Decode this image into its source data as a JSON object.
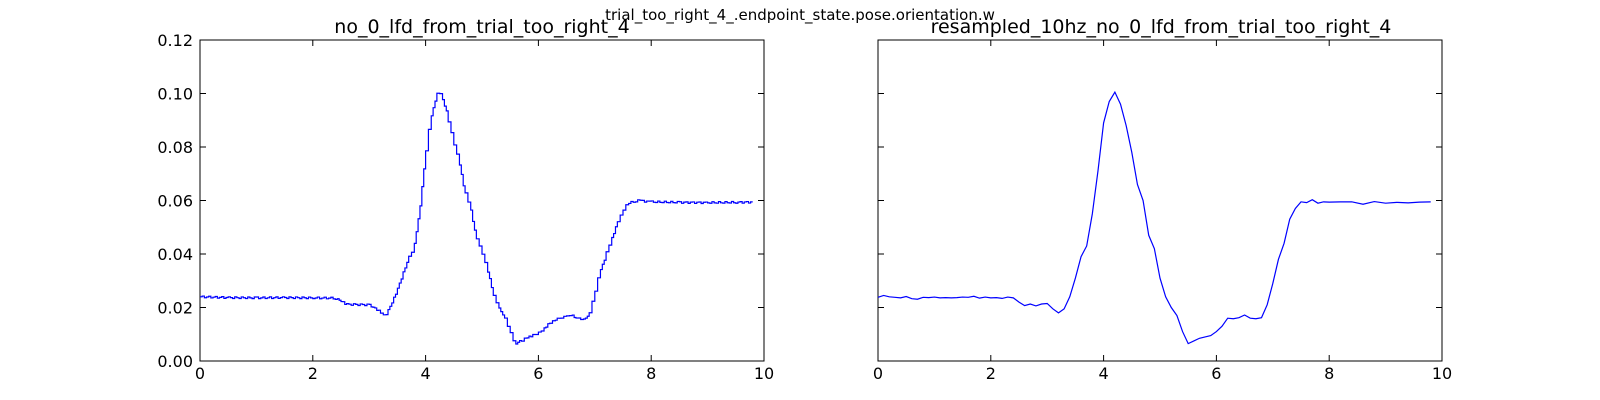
{
  "figure": {
    "suptitle": "trial_too_right_4_.endpoint_state.pose.orientation.w"
  },
  "chart_data": [
    {
      "type": "line",
      "title": "no_0_lfd_from_trial_too_right_4",
      "xlabel": "",
      "ylabel": "",
      "xlim": [
        0,
        10
      ],
      "ylim": [
        0,
        0.12
      ],
      "x_ticks": [
        0,
        2,
        4,
        6,
        8,
        10
      ],
      "y_ticks": [
        0.0,
        0.02,
        0.04,
        0.06,
        0.08,
        0.1,
        0.12
      ],
      "x_tick_labels": [
        "0",
        "2",
        "4",
        "6",
        "8",
        "10"
      ],
      "y_tick_labels": [
        "0.00",
        "0.02",
        "0.04",
        "0.06",
        "0.08",
        "0.10",
        "0.12"
      ],
      "grid": false,
      "line_color": "#0000ff",
      "step_style": true,
      "series": [
        {
          "x": [
            0,
            0.5,
            1.0,
            1.5,
            2.0,
            2.4,
            2.5,
            2.6,
            3.0,
            3.1,
            3.2,
            3.3,
            3.4,
            3.5,
            3.6,
            3.7,
            3.8,
            3.9,
            4.0,
            4.1,
            4.2,
            4.25,
            4.3,
            4.4,
            4.5,
            4.6,
            4.7,
            4.8,
            4.9,
            5.0,
            5.1,
            5.2,
            5.3,
            5.4,
            5.5,
            5.6,
            5.7,
            5.8,
            5.9,
            6.0,
            6.1,
            6.2,
            6.3,
            6.4,
            6.5,
            6.6,
            6.7,
            6.8,
            6.9,
            7.0,
            7.1,
            7.2,
            7.3,
            7.4,
            7.5,
            7.6,
            7.8,
            8.0,
            8.5,
            9.0,
            9.5,
            9.8
          ],
          "y": [
            0.024,
            0.0237,
            0.0236,
            0.0237,
            0.0236,
            0.0235,
            0.0225,
            0.0212,
            0.021,
            0.02,
            0.0185,
            0.017,
            0.021,
            0.026,
            0.032,
            0.038,
            0.042,
            0.055,
            0.075,
            0.09,
            0.099,
            0.1005,
            0.099,
            0.092,
            0.083,
            0.075,
            0.064,
            0.058,
            0.047,
            0.042,
            0.035,
            0.026,
            0.02,
            0.017,
            0.012,
            0.0065,
            0.0075,
            0.0085,
            0.0095,
            0.01,
            0.012,
            0.014,
            0.0155,
            0.016,
            0.0165,
            0.017,
            0.016,
            0.0158,
            0.0165,
            0.024,
            0.033,
            0.039,
            0.045,
            0.051,
            0.056,
            0.059,
            0.06,
            0.0595,
            0.0593,
            0.0592,
            0.0593,
            0.0594
          ]
        }
      ]
    },
    {
      "type": "line",
      "title": "resampled_10hz_no_0_lfd_from_trial_too_right_4",
      "xlabel": "",
      "ylabel": "",
      "xlim": [
        0,
        10
      ],
      "ylim": [
        0,
        0.12
      ],
      "x_ticks": [
        0,
        2,
        4,
        6,
        8,
        10
      ],
      "y_ticks": [
        0.0,
        0.02,
        0.04,
        0.06,
        0.08,
        0.1,
        0.12
      ],
      "x_tick_labels": [
        "0",
        "2",
        "4",
        "6",
        "8",
        "10"
      ],
      "y_tick_labels": [],
      "grid": false,
      "line_color": "#0000ff",
      "step_style": false,
      "series": [
        {
          "x": [
            0,
            0.1,
            0.2,
            0.3,
            0.4,
            0.5,
            0.6,
            0.7,
            0.8,
            0.9,
            1.0,
            1.1,
            1.2,
            1.3,
            1.4,
            1.5,
            1.6,
            1.7,
            1.8,
            1.9,
            2.0,
            2.1,
            2.2,
            2.3,
            2.4,
            2.5,
            2.6,
            2.7,
            2.8,
            2.9,
            3.0,
            3.1,
            3.2,
            3.3,
            3.4,
            3.5,
            3.6,
            3.7,
            3.8,
            3.9,
            4.0,
            4.1,
            4.2,
            4.3,
            4.4,
            4.5,
            4.6,
            4.7,
            4.8,
            4.9,
            5.0,
            5.1,
            5.2,
            5.3,
            5.4,
            5.5,
            5.6,
            5.7,
            5.8,
            5.9,
            6.0,
            6.1,
            6.2,
            6.3,
            6.4,
            6.5,
            6.6,
            6.7,
            6.8,
            6.9,
            7.0,
            7.1,
            7.2,
            7.3,
            7.4,
            7.5,
            7.6,
            7.7,
            7.8,
            7.9,
            8.0,
            8.2,
            8.4,
            8.6,
            8.8,
            9.0,
            9.2,
            9.4,
            9.6,
            9.8
          ],
          "y": [
            0.0238,
            0.0245,
            0.024,
            0.0238,
            0.0236,
            0.0241,
            0.0233,
            0.0231,
            0.0238,
            0.0237,
            0.0239,
            0.0236,
            0.0237,
            0.0236,
            0.0237,
            0.0239,
            0.0238,
            0.0242,
            0.0235,
            0.0239,
            0.0236,
            0.0237,
            0.0234,
            0.0239,
            0.0236,
            0.022,
            0.0207,
            0.0213,
            0.0206,
            0.0213,
            0.0215,
            0.0195,
            0.018,
            0.0195,
            0.024,
            0.031,
            0.039,
            0.043,
            0.055,
            0.071,
            0.089,
            0.097,
            0.1005,
            0.096,
            0.088,
            0.078,
            0.066,
            0.06,
            0.047,
            0.042,
            0.031,
            0.024,
            0.02,
            0.017,
            0.011,
            0.0065,
            0.0075,
            0.0085,
            0.009,
            0.0095,
            0.011,
            0.013,
            0.016,
            0.0158,
            0.0162,
            0.0172,
            0.016,
            0.0158,
            0.0162,
            0.021,
            0.029,
            0.038,
            0.044,
            0.053,
            0.057,
            0.0595,
            0.0592,
            0.0603,
            0.059,
            0.0595,
            0.0594,
            0.0595,
            0.0595,
            0.0586,
            0.0596,
            0.059,
            0.0593,
            0.0591,
            0.0594,
            0.0595
          ]
        }
      ]
    }
  ]
}
